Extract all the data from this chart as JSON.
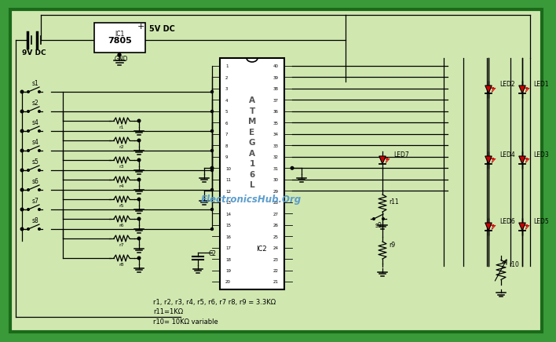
{
  "bg_color": "#3a9a3a",
  "inner_bg": "#d0e8b0",
  "border_color": "#1a6a1a",
  "component_color": "#000000",
  "watermark": "ElectronicsHub.Org",
  "watermark_color": "#5599cc",
  "note_line1": "r1, r2, r3, r4, r5, r6, r7 r8, r9 = 3.3KΩ",
  "note_line2": "r11=1KΩ",
  "note_line3": "r10= 10KΩ variable",
  "ic2_label": "IC2",
  "ic1_label": "IC1",
  "voltage_reg": "7805",
  "supply_9v": "9V DC",
  "supply_5v": "5V DC",
  "gnd_label": "GND",
  "switches": [
    "s1",
    "s2",
    "s4",
    "s4",
    "s5",
    "s6",
    "s7",
    "s8"
  ],
  "resistors_left": [
    "r1",
    "r2",
    "r3",
    "r4",
    "r5",
    "r6",
    "r7",
    "r8"
  ],
  "s9_label": "s9",
  "r9_label": "r9",
  "r10_label": "r10",
  "r11_label": "r11",
  "c2_label": "C2",
  "pin_numbers_left": [
    "1",
    "2",
    "3",
    "4",
    "5",
    "6",
    "7",
    "8",
    "9",
    "10",
    "11",
    "12",
    "13",
    "14",
    "15",
    "16",
    "17",
    "18",
    "19",
    "20"
  ],
  "pin_numbers_right": [
    "40",
    "39",
    "38",
    "37",
    "36",
    "35",
    "34",
    "33",
    "32",
    "31",
    "30",
    "29",
    "28",
    "27",
    "26",
    "25",
    "24",
    "23",
    "22",
    "21"
  ],
  "led_names": [
    "LED1",
    "LED2",
    "LED3",
    "LED4",
    "LED5",
    "LED6",
    "LED7"
  ]
}
